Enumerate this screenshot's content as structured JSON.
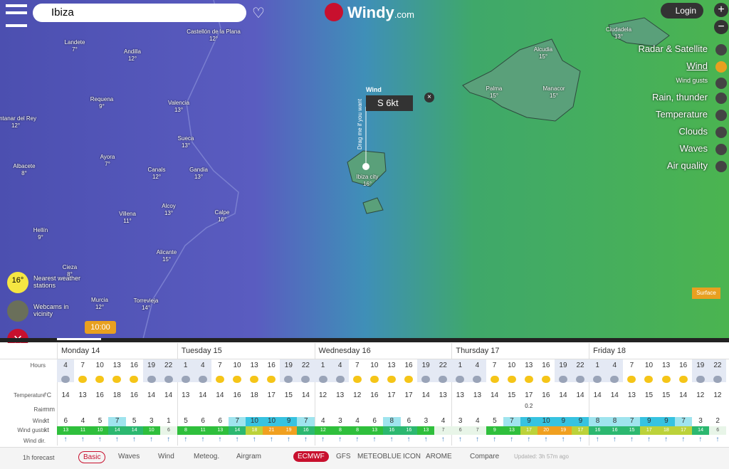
{
  "header": {
    "search": "Ibiza",
    "brand": "Windy",
    "brand_suffix": ".com",
    "login": "Login"
  },
  "layers": [
    "Radar & Satellite",
    "Wind",
    "Wind gusts",
    "Rain, thunder",
    "Temperature",
    "Clouds",
    "Waves",
    "Air quality"
  ],
  "map_labels": [
    {
      "name": "Landete",
      "temp": "7°"
    },
    {
      "name": "Andilla",
      "temp": "12°"
    },
    {
      "name": "Castellón de la Plana",
      "temp": "12°"
    },
    {
      "name": "Requena",
      "temp": "9°"
    },
    {
      "name": "Valencia",
      "temp": "13°"
    },
    {
      "name": "uintanar del Rey",
      "temp": "12°"
    },
    {
      "name": "Sueca",
      "temp": "13°"
    },
    {
      "name": "Ayora",
      "temp": "7°"
    },
    {
      "name": "Albacete",
      "temp": "8°"
    },
    {
      "name": "Canals",
      "temp": "12°"
    },
    {
      "name": "Gandia",
      "temp": "13°"
    },
    {
      "name": "Alcoy",
      "temp": "13°"
    },
    {
      "name": "Villena",
      "temp": "11°"
    },
    {
      "name": "Calpe",
      "temp": "16°"
    },
    {
      "name": "Hellín",
      "temp": "9°"
    },
    {
      "name": "Alicante",
      "temp": "15°"
    },
    {
      "name": "Cieza",
      "temp": "8°"
    },
    {
      "name": "Murcia",
      "temp": "12°"
    },
    {
      "name": "Torrevieja",
      "temp": "14°"
    },
    {
      "name": "Palma",
      "temp": "15°"
    },
    {
      "name": "Manacor",
      "temp": "15°"
    },
    {
      "name": "Alcudia",
      "temp": "15°"
    },
    {
      "name": "Ciudadela",
      "temp": "13°"
    },
    {
      "name": "Ibiza city",
      "temp": "16°"
    }
  ],
  "popup": {
    "title": "Wind",
    "value": "S 6kt",
    "drag": "Drag me if you want"
  },
  "side": {
    "temp": "16°",
    "stations": "Nearest weather stations",
    "webcams": "Webcams in vicinity",
    "surface": "Surface",
    "time": "10:00"
  },
  "forecast": {
    "days": [
      "Monday 14",
      "Tuesday 15",
      "Wednesday 16",
      "Thursday 17",
      "Friday 18"
    ],
    "day_starts": [
      0,
      7,
      15,
      23,
      31
    ],
    "row_labels": {
      "hours": "Hours",
      "temperature": "Temperature",
      "rain": "Rain",
      "wind": "Wind",
      "gusts": "Wind gusts",
      "dir": "Wind dir."
    },
    "units": {
      "temperature": "°C",
      "rain": "mm",
      "wind": "kt",
      "gusts": "kt"
    },
    "hours": [
      4,
      7,
      10,
      13,
      16,
      19,
      22,
      1,
      4,
      7,
      10,
      13,
      16,
      19,
      22,
      1,
      4,
      7,
      10,
      13,
      16,
      19,
      22,
      1,
      4,
      7,
      10,
      13,
      16,
      19,
      22,
      1,
      4,
      7,
      10,
      13,
      16,
      19,
      22
    ],
    "temperature": [
      14,
      13,
      16,
      18,
      16,
      14,
      14,
      13,
      14,
      14,
      16,
      18,
      17,
      15,
      14,
      12,
      13,
      12,
      16,
      17,
      17,
      14,
      13,
      13,
      13,
      14,
      15,
      17,
      16,
      14,
      14,
      14,
      14,
      13,
      15,
      15,
      14,
      12,
      12
    ],
    "rain": [
      null,
      null,
      null,
      null,
      null,
      null,
      null,
      null,
      null,
      null,
      null,
      null,
      null,
      null,
      null,
      null,
      null,
      null,
      null,
      null,
      null,
      null,
      null,
      null,
      null,
      null,
      null,
      0.2,
      null,
      null,
      null,
      null,
      null,
      null,
      null,
      null,
      null,
      null,
      null
    ],
    "wind": [
      6,
      4,
      5,
      7,
      5,
      3,
      1,
      5,
      6,
      6,
      7,
      10,
      10,
      9,
      7,
      4,
      3,
      4,
      6,
      8,
      6,
      3,
      4,
      3,
      4,
      5,
      7,
      9,
      10,
      9,
      9,
      8,
      8,
      7,
      9,
      9,
      7,
      3,
      2
    ],
    "gusts": [
      13,
      11,
      10,
      14,
      14,
      10,
      6,
      8,
      11,
      13,
      14,
      18,
      21,
      19,
      16,
      12,
      8,
      8,
      13,
      16,
      16,
      13,
      7,
      6,
      7,
      9,
      13,
      17,
      20,
      19,
      17,
      16,
      16,
      15,
      17,
      18,
      17,
      14,
      6
    ]
  },
  "footer": {
    "forecast1h": "1h forecast",
    "tabs": [
      "Basic",
      "Waves",
      "Wind",
      "Meteog.",
      "Airgram"
    ],
    "models": [
      "ECMWF",
      "GFS",
      "METEOBLUE",
      "ICON",
      "AROME"
    ],
    "compare": "Compare",
    "updated": "Updated: 3h 57m ago"
  }
}
